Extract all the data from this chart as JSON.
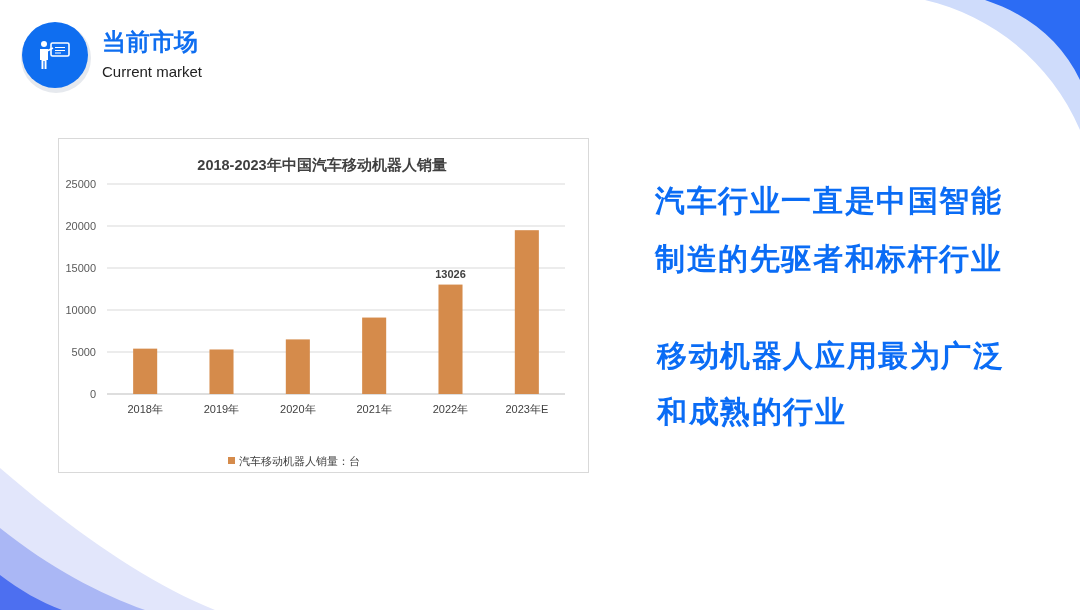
{
  "chart_data": {
    "type": "bar",
    "title": "2018-2023年中国汽车移动机器人销量",
    "categories": [
      "2018年",
      "2019年",
      "2020年",
      "2021年",
      "2022年",
      "2023年E"
    ],
    "series": [
      {
        "name": "汽车移动机器人销量：台",
        "color": "#d58b4b",
        "values": [
          5400,
          5300,
          6500,
          9100,
          13026,
          19500
        ],
        "value_labels": [
          null,
          null,
          null,
          null,
          "13026",
          null
        ]
      }
    ],
    "ylim": [
      0,
      25000
    ],
    "yticks": [
      0,
      5000,
      10000,
      15000,
      20000,
      25000
    ],
    "grid": "y",
    "legend": "bottom",
    "annotations": [
      "当前市场",
      "Current market",
      "汽车行业一直是中国智能制造的先驱者和标杆行业",
      "移动机器人应用最为广泛和成熟的行业"
    ]
  }
}
